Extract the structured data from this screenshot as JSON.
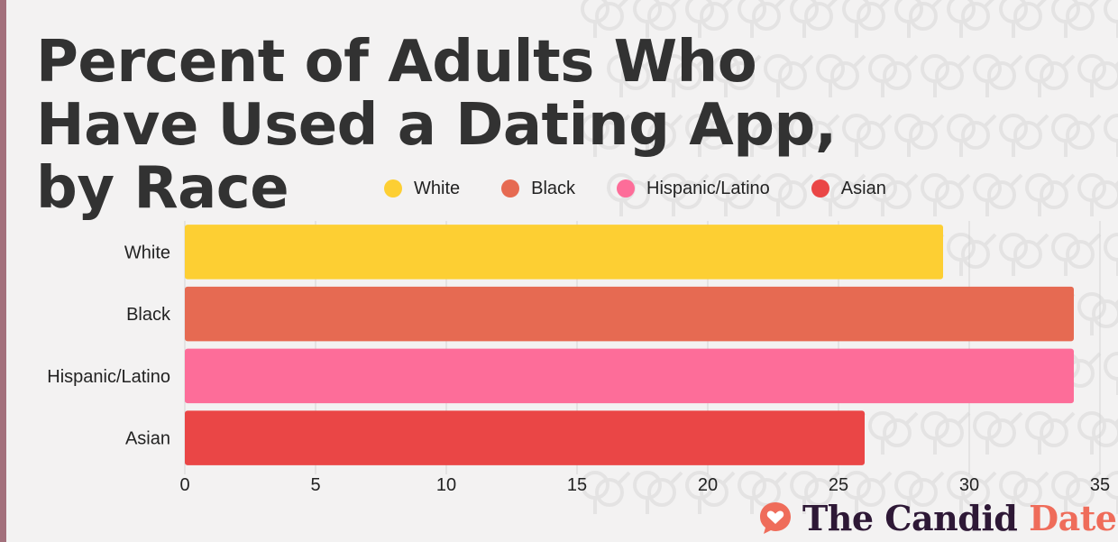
{
  "title": "Percent of Adults Who Have Used a Dating App, by Race",
  "brand": {
    "name_part1": "The Candid",
    "name_part2": "Date",
    "logo_icon": "heart-chat-icon",
    "color_dark": "#2e1836",
    "color_accent": "#ef6c5a"
  },
  "chart_data": {
    "type": "bar",
    "orientation": "horizontal",
    "categories": [
      "White",
      "Black",
      "Hispanic/Latino",
      "Asian"
    ],
    "values": [
      29,
      34,
      34,
      26
    ],
    "colors": [
      "#fdcf33",
      "#e66a52",
      "#fd6d99",
      "#ea4646"
    ],
    "legend": [
      "White",
      "Black",
      "Hispanic/Latino",
      "Asian"
    ],
    "legend_position": "top",
    "xlim": [
      0,
      35
    ],
    "xticks": [
      0,
      5,
      10,
      15,
      20,
      25,
      30,
      35
    ],
    "grid": true,
    "title": "Percent of Adults Who Have Used a Dating App, by Race",
    "xlabel": "",
    "ylabel": ""
  }
}
